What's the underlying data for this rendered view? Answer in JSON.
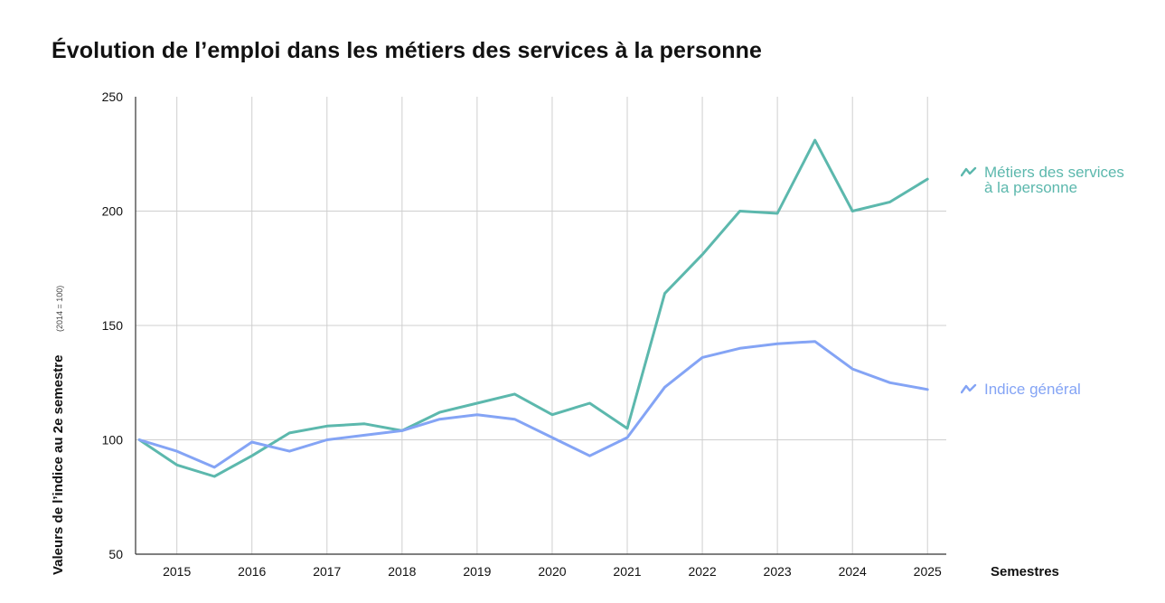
{
  "title": "Évolution de l’emploi dans les métiers des services à la personne",
  "chart_data": {
    "type": "line",
    "title": "Évolution de l’emploi dans les métiers des services à la personne",
    "ylabel": "Valeurs de l’indice au 2e semestre",
    "ylabel_note": "(2014 = 100)",
    "xlabel": "Semestres",
    "ylim": [
      50,
      250
    ],
    "yticks": [
      50,
      100,
      150,
      200,
      250
    ],
    "xlim": [
      2014.45,
      2025.25
    ],
    "xticks": [
      "2015",
      "2016",
      "2017",
      "2018",
      "2019",
      "2020",
      "2021",
      "2022",
      "2023",
      "2024",
      "2025"
    ],
    "grid": true,
    "legend_position": "right",
    "x": [
      2014.5,
      2015.0,
      2015.5,
      2016.0,
      2016.5,
      2017.0,
      2017.5,
      2018.0,
      2018.5,
      2019.0,
      2019.5,
      2020.0,
      2020.5,
      2021.0,
      2021.5,
      2022.0,
      2022.5,
      2023.0,
      2023.5,
      2024.0,
      2024.5,
      2025.0
    ],
    "series": [
      {
        "name": "Métiers des services\nà la personne",
        "color": "#5cb8ad",
        "icon": "trend-icon",
        "values": [
          100,
          89,
          84,
          93,
          103,
          106,
          107,
          104,
          112,
          116,
          120,
          111,
          116,
          105,
          164,
          181,
          200,
          199,
          231,
          200,
          204,
          214
        ]
      },
      {
        "name": "Indice général",
        "color": "#84a4f5",
        "icon": "trend-icon",
        "values": [
          100,
          95,
          88,
          99,
          95,
          100,
          102,
          104,
          109,
          111,
          109,
          101,
          93,
          101,
          123,
          136,
          140,
          142,
          143,
          131,
          125,
          122
        ]
      }
    ]
  }
}
